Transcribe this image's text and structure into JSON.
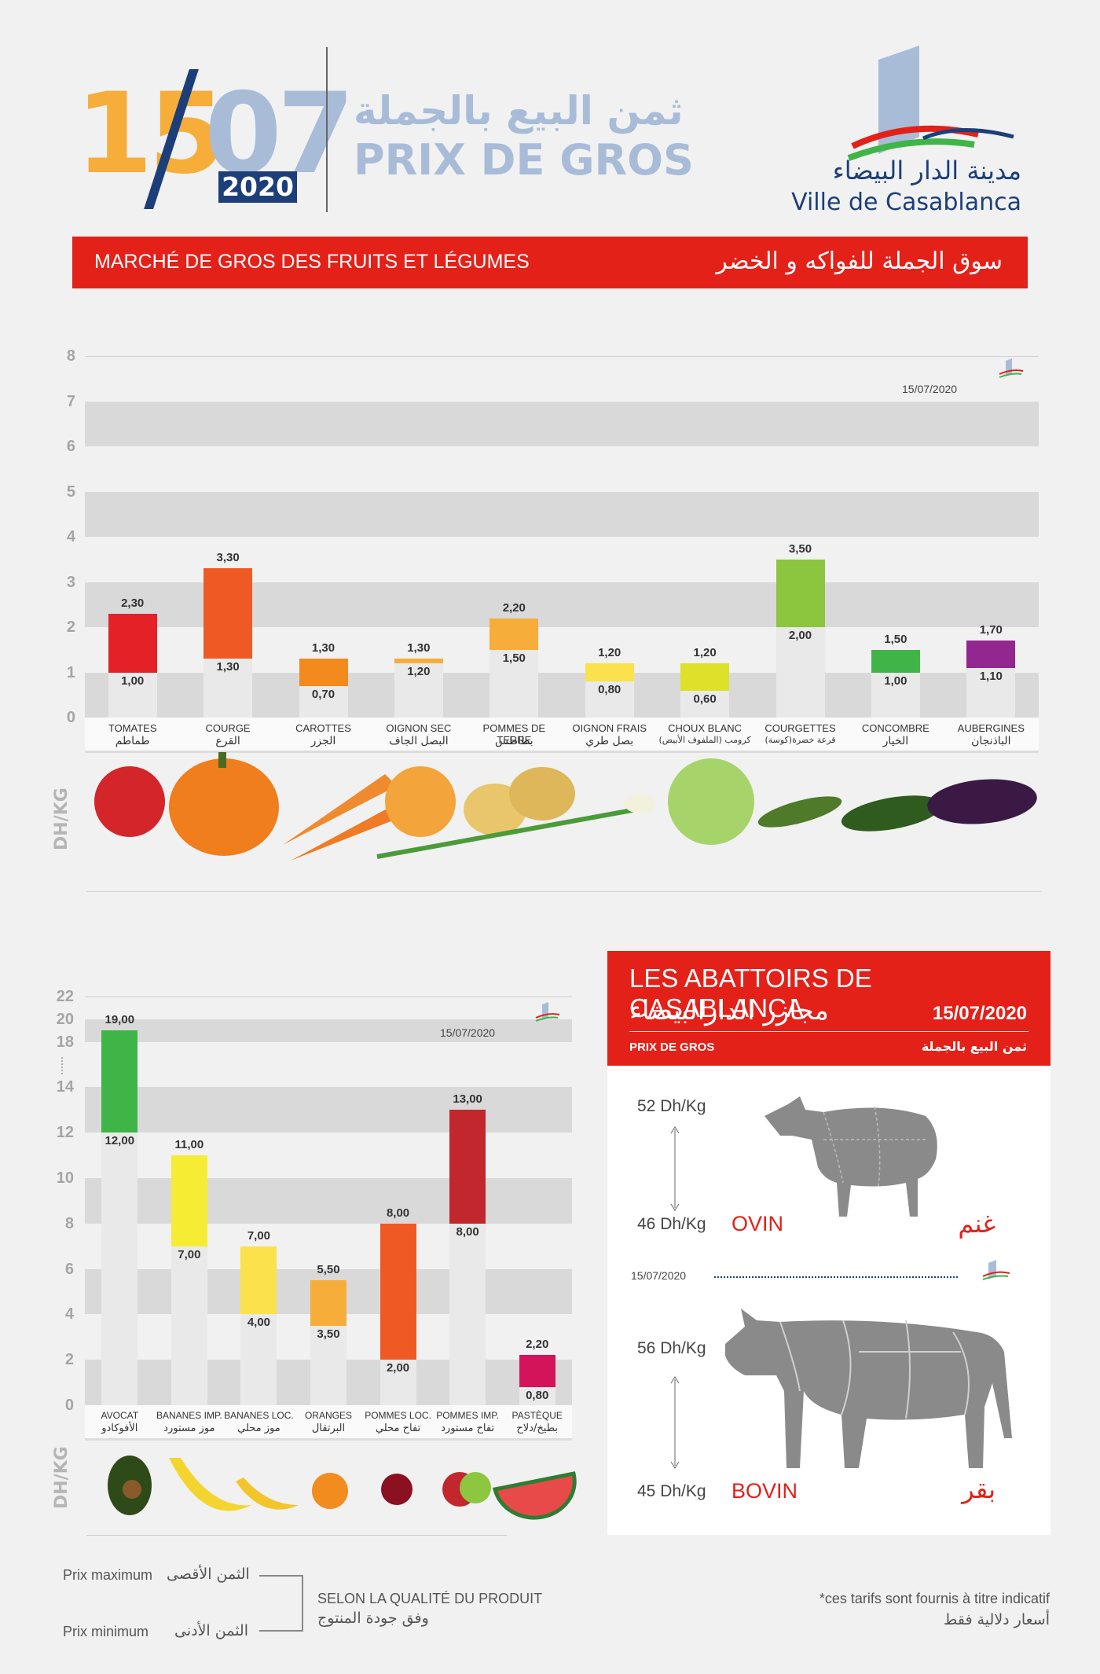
{
  "header": {
    "day": "15",
    "month": "07",
    "year": "2020",
    "title_ar": "ثمن البيع بالجملة",
    "title_fr": "PRIX DE GROS",
    "city_ar": "مدينة الدار البيضاء",
    "city_fr": "Ville de Casablanca"
  },
  "banner": {
    "fr": "MARCHÉ DE GROS DES FRUITS ET LÉGUMES",
    "ar": "سوق الجملة للفواكه و الخضر"
  },
  "chart_data": [
    {
      "type": "bar",
      "subtype": "range",
      "date": "15/07/2020",
      "ylabel": "DH/KG",
      "ylim": [
        0,
        8
      ],
      "yticks": [
        "0",
        "1",
        "2",
        "3",
        "4",
        "5",
        "6",
        "7",
        "8"
      ],
      "categories": [
        {
          "fr": "TOMATES",
          "ar": "طماطم",
          "min": "1,00",
          "max": "2,30",
          "min_v": 1.0,
          "max_v": 2.3,
          "color": "#e32127"
        },
        {
          "fr": "COURGE",
          "ar": "القرع",
          "min": "1,30",
          "max": "3,30",
          "min_v": 1.3,
          "max_v": 3.3,
          "color": "#ef5a24"
        },
        {
          "fr": "CAROTTES",
          "ar": "الجزر",
          "min": "0,70",
          "max": "1,30",
          "min_v": 0.7,
          "max_v": 1.3,
          "color": "#f28a1e"
        },
        {
          "fr": "OIGNON SEC",
          "ar": "البصل الجاف",
          "min": "1,20",
          "max": "1,30",
          "min_v": 1.2,
          "max_v": 1.3,
          "color": "#f6ad3a"
        },
        {
          "fr": "POMMES DE TERRE",
          "ar": "بطاطس",
          "min": "1,50",
          "max": "2,20",
          "min_v": 1.5,
          "max_v": 2.2,
          "color": "#f6ad3a"
        },
        {
          "fr": "OIGNON FRAIS",
          "ar": "بصل طري",
          "min": "0,80",
          "max": "1,20",
          "min_v": 0.8,
          "max_v": 1.2,
          "color": "#fbe14b"
        },
        {
          "fr": "CHOUX BLANC",
          "ar": "كرومب (الملفوف الأبيض)",
          "min": "0,60",
          "max": "1,20",
          "min_v": 0.6,
          "max_v": 1.2,
          "color": "#dde12a"
        },
        {
          "fr": "COURGETTES",
          "ar": "قرعة خضرة(كوسة)",
          "min": "2,00",
          "max": "3,50",
          "min_v": 2.0,
          "max_v": 3.5,
          "color": "#8cc63f"
        },
        {
          "fr": "CONCOMBRE",
          "ar": "الخيار",
          "min": "1,00",
          "max": "1,50",
          "min_v": 1.0,
          "max_v": 1.5,
          "color": "#3fb548"
        },
        {
          "fr": "AUBERGINES",
          "ar": "الباذنجان",
          "min": "1,10",
          "max": "1,70",
          "min_v": 1.1,
          "max_v": 1.7,
          "color": "#92278f"
        }
      ]
    },
    {
      "type": "bar",
      "subtype": "range",
      "date": "15/07/2020",
      "ylabel": "DH/KG",
      "ylim": [
        0,
        22
      ],
      "yticks": [
        "0",
        "2",
        "4",
        "6",
        "8",
        "10",
        "12",
        "14",
        "18",
        "20",
        "22"
      ],
      "categories": [
        {
          "fr": "AVOCAT",
          "ar": "الأفوكادو",
          "min": "12,00",
          "max": "19,00",
          "min_v": 12,
          "max_v": 19,
          "color": "#3fb548"
        },
        {
          "fr": "BANANES IMP.",
          "ar": "موز مستورد",
          "min": "7,00",
          "max": "11,00",
          "min_v": 7,
          "max_v": 11,
          "color": "#f7ec34"
        },
        {
          "fr": "BANANES LOC.",
          "ar": "موز محلي",
          "min": "4,00",
          "max": "7,00",
          "min_v": 4,
          "max_v": 7,
          "color": "#fbe14b"
        },
        {
          "fr": "ORANGES",
          "ar": "البرتقال",
          "min": "3,50",
          "max": "5,50",
          "min_v": 3.5,
          "max_v": 5.5,
          "color": "#f6ad3a"
        },
        {
          "fr": "POMMES LOC.",
          "ar": "تفاح محلي",
          "min": "2,00",
          "max": "8,00",
          "min_v": 2,
          "max_v": 8,
          "color": "#ef5a24"
        },
        {
          "fr": "POMMES IMP.",
          "ar": "تفاح مستورد",
          "min": "8,00",
          "max": "13,00",
          "min_v": 8,
          "max_v": 13,
          "color": "#c1272d"
        },
        {
          "fr": "PASTÈQUE",
          "ar": "بطيخ/دلاح",
          "min": "0,80",
          "max": "2,20",
          "min_v": 0.8,
          "max_v": 2.2,
          "color": "#d4145a"
        }
      ]
    }
  ],
  "abattoirs": {
    "title_fr": "LES ABATTOIRS DE CASABLANCA",
    "title_ar": "مجازر الدارالبيضاء",
    "date": "15/07/2020",
    "pg_fr": "PRIX DE GROS",
    "pg_ar": "ثمن البيع بالجملة",
    "ovin": {
      "max": "52 Dh/Kg",
      "min": "46 Dh/Kg",
      "fr": "OVIN",
      "ar": "غنم"
    },
    "bovin": {
      "max": "56 Dh/Kg",
      "min": "45 Dh/Kg",
      "fr": "BOVIN",
      "ar": "بقر"
    },
    "inner_date": "15/07/2020"
  },
  "legend": {
    "max_fr": "Prix maximum",
    "max_ar": "الثمن الأقصى",
    "min_fr": "Prix minimum",
    "min_ar": "الثمن الأدنى",
    "quality_fr": "SELON LA QUALITÉ DU PRODUIT",
    "quality_ar": "وفق جودة المنتوج",
    "note_fr": "*ces tarifs sont fournis à titre indicatif",
    "note_ar": "أسعار دلالية فقط"
  },
  "colors": {
    "accent": "#e32119",
    "navy": "#1c3f7a",
    "lightblue": "#a8bcd8",
    "orange": "#f6ad3a"
  }
}
